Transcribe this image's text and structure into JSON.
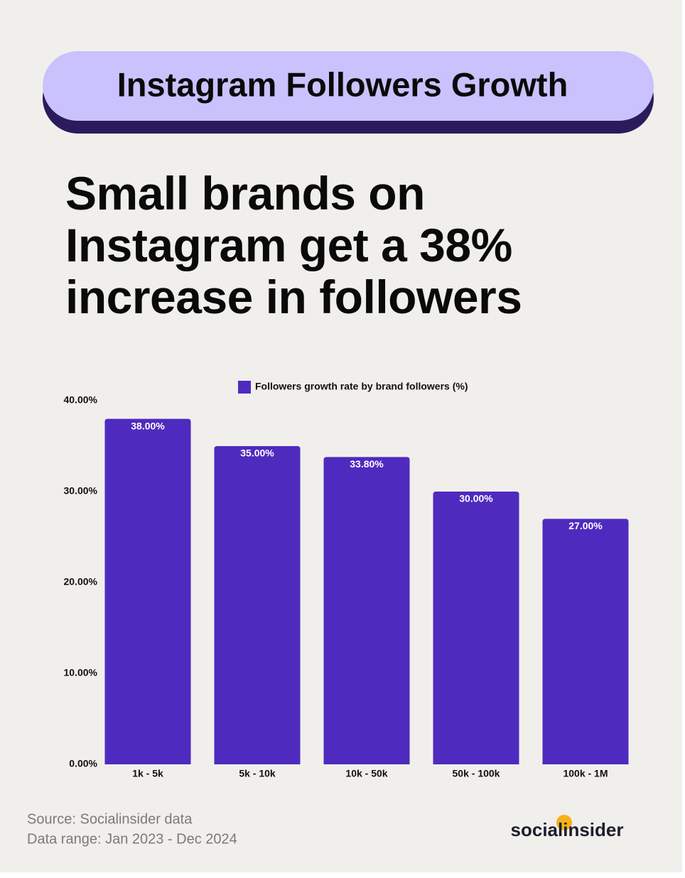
{
  "chart_data": {
    "type": "bar",
    "title": "Instagram Followers Growth",
    "subtitle": "Small brands on Instagram get a 38% increase in followers",
    "categories": [
      "1k - 5k",
      "5k - 10k",
      "10k - 50k",
      "50k - 100k",
      "100k - 1M"
    ],
    "series": [
      {
        "name": "Followers growth rate by brand followers (%)",
        "color": "#4f2abf",
        "values": [
          38,
          35,
          33.8,
          30,
          27
        ],
        "value_labels": [
          "38.00%",
          "35.00%",
          "33.80%",
          "30.00%",
          "27.00%"
        ]
      }
    ],
    "ylim": [
      0,
      40
    ],
    "yticks": [
      {
        "value": 0,
        "label": "0.00%"
      },
      {
        "value": 10,
        "label": "10.00%"
      },
      {
        "value": 20,
        "label": "20.00%"
      },
      {
        "value": 30,
        "label": "30.00%"
      },
      {
        "value": 40,
        "label": "40.00%"
      }
    ],
    "grid": false,
    "legend": "top",
    "source": "Source: Socialinsider data",
    "data_range": "Data range: Jan 2023 - Dec 2024",
    "logo": "socialinsider"
  }
}
